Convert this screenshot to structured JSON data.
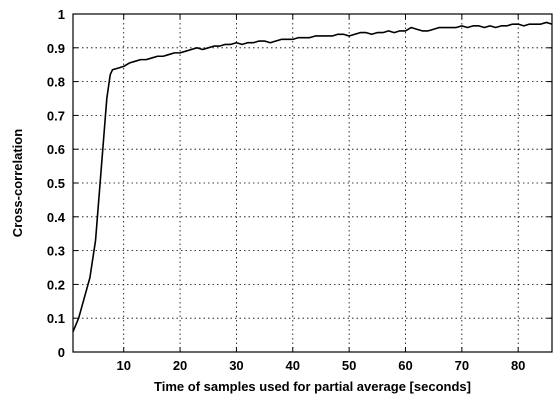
{
  "chart_data": {
    "type": "line",
    "title": "",
    "xlabel": "Time of samples used for partial average [seconds]",
    "ylabel": "Cross-correlation",
    "xlim": [
      1,
      86
    ],
    "ylim": [
      0,
      1
    ],
    "xticks": [
      10,
      20,
      30,
      40,
      50,
      60,
      70,
      80
    ],
    "yticks": [
      0,
      0.1,
      0.2,
      0.3,
      0.4,
      0.5,
      0.6,
      0.7,
      0.8,
      0.9,
      1
    ],
    "grid": true,
    "series": [
      {
        "x": [
          1,
          2,
          3,
          4,
          5,
          6,
          7,
          7.6,
          8,
          9,
          10,
          11,
          12,
          13,
          14,
          15,
          16,
          17,
          18,
          19,
          20,
          21,
          22,
          23,
          24,
          25,
          26,
          27,
          28,
          29,
          30,
          31,
          32,
          33,
          34,
          35,
          36,
          37,
          38,
          39,
          40,
          41,
          42,
          43,
          44,
          45,
          46,
          47,
          48,
          49,
          50,
          51,
          52,
          53,
          54,
          55,
          56,
          57,
          58,
          59,
          60,
          61,
          62,
          63,
          64,
          65,
          66,
          67,
          68,
          69,
          70,
          71,
          72,
          73,
          74,
          75,
          76,
          77,
          78,
          79,
          80,
          81,
          82,
          83,
          84,
          85,
          86
        ],
        "y": [
          0.06,
          0.1,
          0.16,
          0.22,
          0.33,
          0.54,
          0.75,
          0.82,
          0.835,
          0.84,
          0.845,
          0.855,
          0.86,
          0.865,
          0.865,
          0.87,
          0.875,
          0.875,
          0.88,
          0.885,
          0.885,
          0.89,
          0.895,
          0.9,
          0.895,
          0.9,
          0.905,
          0.905,
          0.91,
          0.91,
          0.915,
          0.91,
          0.915,
          0.915,
          0.92,
          0.92,
          0.915,
          0.92,
          0.925,
          0.925,
          0.925,
          0.93,
          0.93,
          0.93,
          0.935,
          0.935,
          0.935,
          0.935,
          0.94,
          0.94,
          0.935,
          0.94,
          0.945,
          0.945,
          0.94,
          0.945,
          0.945,
          0.95,
          0.945,
          0.95,
          0.95,
          0.96,
          0.955,
          0.95,
          0.95,
          0.955,
          0.96,
          0.96,
          0.96,
          0.96,
          0.965,
          0.96,
          0.965,
          0.965,
          0.96,
          0.965,
          0.96,
          0.965,
          0.965,
          0.97,
          0.97,
          0.965,
          0.97,
          0.97,
          0.97,
          0.975,
          0.97
        ]
      }
    ]
  }
}
